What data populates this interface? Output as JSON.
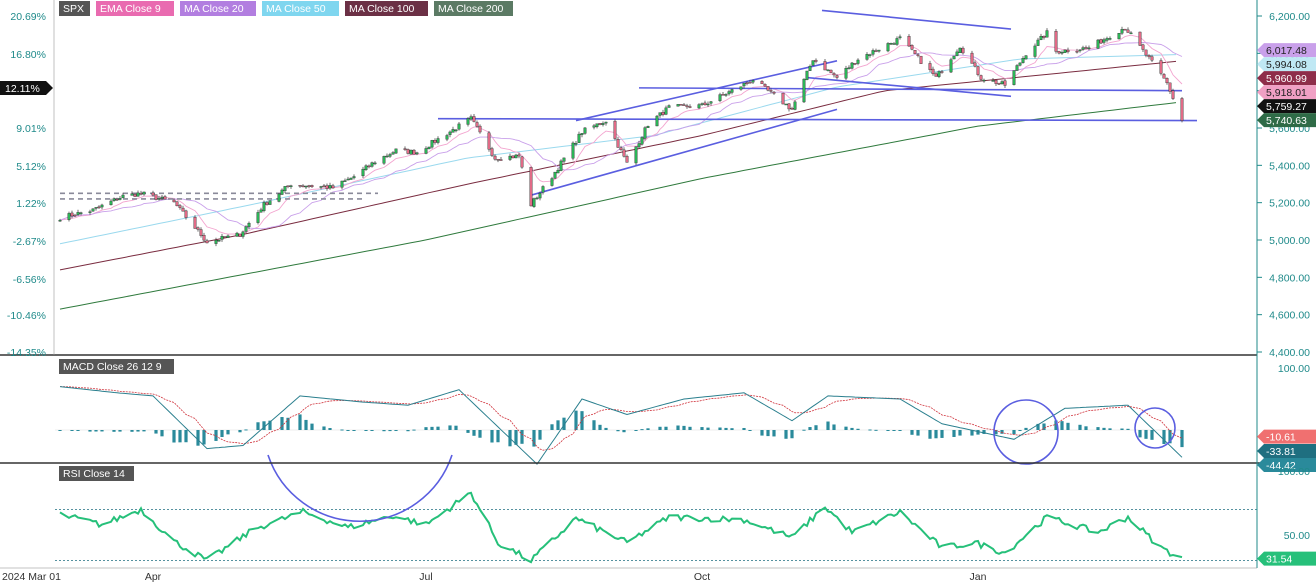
{
  "legend": [
    {
      "label": "SPX",
      "color": "#555555"
    },
    {
      "label": "EMA Close 9",
      "color": "#e96bb0"
    },
    {
      "label": "MA Close 20",
      "color": "#b27ee0"
    },
    {
      "label": "MA Close 50",
      "color": "#7fd6ef"
    },
    {
      "label": "MA Close 100",
      "color": "#6b3045"
    },
    {
      "label": "MA Close 200",
      "color": "#5b7a64"
    }
  ],
  "colors": {
    "up": "#2cb457",
    "down": "#e06a86",
    "macd": "#2a7f8e",
    "signal": "#d0343d",
    "hist": "#2a8a9b",
    "rsi": "#26c07a",
    "trend": "#5a5ee0",
    "axis": "#1f8a8a",
    "ema9": "#f3a4cf",
    "ma20": "#c9a0ea",
    "ma50": "#9ad9ee",
    "ma100": "#7a2c40",
    "ma200": "#2f7a3d"
  },
  "price_axis_ticks": [
    "6,200.00",
    "6,000.00",
    "5,800.00",
    "5,600.00",
    "5,400.00",
    "5,200.00",
    "5,000.00",
    "4,800.00",
    "4,600.00",
    "4,400.00"
  ],
  "pct_axis_ticks": [
    "20.69%",
    "16.80%",
    "12.11%",
    "9.01%",
    "5.12%",
    "1.22%",
    "-2.67%",
    "-6.56%",
    "-10.46%",
    "-14.35%"
  ],
  "current_pct": "12.11%",
  "price_tags": [
    {
      "value": 6017.48,
      "label": "6,017.48",
      "bg": "#c9a0ea"
    },
    {
      "value": 5994.08,
      "label": "5,994.08",
      "bg": "#bfe8f4"
    },
    {
      "value": 5960.99,
      "label": "5,960.99",
      "bg": "#8e2d4a"
    },
    {
      "value": 5918.01,
      "label": "5,918.01",
      "bg": "#f0a0c4"
    },
    {
      "value": 5759.27,
      "label": "5,759.27",
      "bg": "#111111"
    },
    {
      "value": 5740.63,
      "label": "5,740.63",
      "bg": "#2f6b47"
    }
  ],
  "macd": {
    "title": "MACD Close 26 12 9",
    "ticks": [
      "100.00"
    ],
    "tags": [
      {
        "value": -10.61,
        "label": "-10.61",
        "bg": "#f07070"
      },
      {
        "value": -33.81,
        "label": "-33.81",
        "bg": "#1f6f80"
      },
      {
        "value": -44.42,
        "label": "-44.42",
        "bg": "#2a8a9b"
      }
    ]
  },
  "rsi": {
    "title": "RSI Close 14",
    "ticks": [
      "100.00",
      "50.00"
    ],
    "tag": {
      "value": 31.54,
      "label": "31.54",
      "bg": "#26c07a"
    }
  },
  "x_axis_labels": [
    "2024 Mar 01",
    "Apr",
    "Jul",
    "Oct",
    "Jan"
  ],
  "chart_data": {
    "type": "candlestick",
    "title": "SPX",
    "ylabel": "Price",
    "ylim": [
      4400,
      6250
    ],
    "secondary_ylabel": "% change",
    "x_range": [
      "2024-03-01",
      "2025-03-10"
    ],
    "anchors": [
      [
        "2024-03-01",
        5120
      ],
      [
        "2024-03-12",
        5160
      ],
      [
        "2024-03-22",
        5235
      ],
      [
        "2024-03-28",
        5250
      ],
      [
        "2024-04-08",
        5200
      ],
      [
        "2024-04-19",
        4990
      ],
      [
        "2024-04-30",
        5030
      ],
      [
        "2024-05-08",
        5190
      ],
      [
        "2024-05-17",
        5300
      ],
      [
        "2024-05-31",
        5280
      ],
      [
        "2024-06-07",
        5340
      ],
      [
        "2024-06-14",
        5420
      ],
      [
        "2024-06-21",
        5480
      ],
      [
        "2024-06-28",
        5470
      ],
      [
        "2024-07-05",
        5540
      ],
      [
        "2024-07-16",
        5650
      ],
      [
        "2024-07-24",
        5440
      ],
      [
        "2024-08-01",
        5450
      ],
      [
        "2024-08-05",
        5190
      ],
      [
        "2024-08-12",
        5340
      ],
      [
        "2024-08-22",
        5580
      ],
      [
        "2024-08-30",
        5640
      ],
      [
        "2024-09-06",
        5410
      ],
      [
        "2024-09-13",
        5620
      ],
      [
        "2024-09-20",
        5710
      ],
      [
        "2024-10-01",
        5720
      ],
      [
        "2024-10-11",
        5800
      ],
      [
        "2024-10-18",
        5860
      ],
      [
        "2024-10-31",
        5700
      ],
      [
        "2024-11-07",
        5970
      ],
      [
        "2024-11-15",
        5870
      ],
      [
        "2024-11-22",
        5970
      ],
      [
        "2024-12-06",
        6080
      ],
      [
        "2024-12-18",
        5870
      ],
      [
        "2024-12-26",
        6040
      ],
      [
        "2025-01-02",
        5870
      ],
      [
        "2025-01-10",
        5830
      ],
      [
        "2025-01-17",
        6000
      ],
      [
        "2025-01-24",
        6110
      ],
      [
        "2025-01-27",
        6010
      ],
      [
        "2025-02-07",
        6030
      ],
      [
        "2025-02-19",
        6140
      ],
      [
        "2025-02-28",
        5950
      ],
      [
        "2025-03-05",
        5840
      ],
      [
        "2025-03-10",
        5640
      ]
    ],
    "moving_averages": [
      {
        "name": "MA Close 200",
        "points": [
          [
            "2024-03-01",
            4630
          ],
          [
            "2024-07-01",
            5000
          ],
          [
            "2024-10-01",
            5330
          ],
          [
            "2025-01-01",
            5610
          ],
          [
            "2025-03-10",
            5740
          ]
        ]
      },
      {
        "name": "MA Close 100",
        "points": [
          [
            "2024-03-01",
            4840
          ],
          [
            "2024-05-01",
            5030
          ],
          [
            "2024-07-15",
            5300
          ],
          [
            "2024-10-01",
            5560
          ],
          [
            "2024-12-01",
            5800
          ],
          [
            "2025-03-10",
            5960
          ]
        ]
      },
      {
        "name": "MA Close 50",
        "points": [
          [
            "2024-03-01",
            4980
          ],
          [
            "2024-05-01",
            5180
          ],
          [
            "2024-07-15",
            5440
          ],
          [
            "2024-09-15",
            5560
          ],
          [
            "2024-11-15",
            5820
          ],
          [
            "2025-01-15",
            5970
          ],
          [
            "2025-03-10",
            5994
          ]
        ]
      }
    ],
    "trendlines": [
      {
        "from": [
          "2024-03-01",
          5250
        ],
        "to": [
          "2024-06-15",
          5250
        ],
        "style": "dashed"
      },
      {
        "from": [
          "2024-03-01",
          5220
        ],
        "to": [
          "2024-06-10",
          5220
        ],
        "style": "dashed"
      },
      {
        "from": [
          "2024-07-05",
          5650
        ],
        "to": [
          "2025-03-15",
          5640
        ],
        "style": "solid"
      },
      {
        "from": [
          "2024-08-20",
          5640
        ],
        "to": [
          "2024-11-15",
          5960
        ],
        "style": "solid"
      },
      {
        "from": [
          "2024-08-05",
          5240
        ],
        "to": [
          "2024-11-15",
          5700
        ],
        "style": "solid"
      },
      {
        "from": [
          "2024-09-10",
          5815
        ],
        "to": [
          "2025-03-10",
          5800
        ],
        "style": "solid"
      },
      {
        "from": [
          "2024-11-10",
          6230
        ],
        "to": [
          "2025-01-12",
          6130
        ],
        "style": "solid"
      },
      {
        "from": [
          "2024-11-05",
          5870
        ],
        "to": [
          "2025-01-12",
          5770
        ],
        "style": "solid"
      }
    ],
    "macd_panel": {
      "ylabel": "MACD",
      "last_values": {
        "histogram": -10.61,
        "macd": -44.42,
        "signal": -33.81
      },
      "macd_anchors": [
        [
          "2024-03-01",
          70
        ],
        [
          "2024-03-20",
          60
        ],
        [
          "2024-04-01",
          55
        ],
        [
          "2024-04-19",
          -30
        ],
        [
          "2024-05-01",
          -25
        ],
        [
          "2024-05-20",
          55
        ],
        [
          "2024-06-10",
          45
        ],
        [
          "2024-06-25",
          40
        ],
        [
          "2024-07-12",
          65
        ],
        [
          "2024-07-25",
          5
        ],
        [
          "2024-08-07",
          -55
        ],
        [
          "2024-08-22",
          50
        ],
        [
          "2024-09-06",
          25
        ],
        [
          "2024-09-25",
          50
        ],
        [
          "2024-10-15",
          60
        ],
        [
          "2024-10-31",
          15
        ],
        [
          "2024-11-12",
          55
        ],
        [
          "2024-12-06",
          50
        ],
        [
          "2024-12-20",
          10
        ],
        [
          "2025-01-13",
          -15
        ],
        [
          "2025-01-30",
          35
        ],
        [
          "2025-02-20",
          40
        ],
        [
          "2025-03-10",
          -44
        ]
      ]
    },
    "rsi_panel": {
      "ylabel": "RSI",
      "levels": [
        70,
        30
      ],
      "last_value": 31.54,
      "rsi_anchors": [
        [
          "2024-03-01",
          66
        ],
        [
          "2024-03-15",
          58
        ],
        [
          "2024-03-28",
          70
        ],
        [
          "2024-04-08",
          45
        ],
        [
          "2024-04-19",
          30
        ],
        [
          "2024-05-05",
          55
        ],
        [
          "2024-05-21",
          68
        ],
        [
          "2024-06-05",
          56
        ],
        [
          "2024-06-20",
          65
        ],
        [
          "2024-07-01",
          58
        ],
        [
          "2024-07-16",
          83
        ],
        [
          "2024-07-25",
          44
        ],
        [
          "2024-08-05",
          30
        ],
        [
          "2024-08-20",
          63
        ],
        [
          "2024-09-06",
          44
        ],
        [
          "2024-09-20",
          64
        ],
        [
          "2024-10-15",
          62
        ],
        [
          "2024-10-31",
          48
        ],
        [
          "2024-11-11",
          72
        ],
        [
          "2024-11-20",
          52
        ],
        [
          "2024-12-06",
          68
        ],
        [
          "2024-12-20",
          40
        ],
        [
          "2024-12-31",
          44
        ],
        [
          "2025-01-10",
          36
        ],
        [
          "2025-01-24",
          64
        ],
        [
          "2025-02-10",
          52
        ],
        [
          "2025-02-20",
          64
        ],
        [
          "2025-03-03",
          40
        ],
        [
          "2025-03-10",
          31.5
        ]
      ]
    }
  }
}
